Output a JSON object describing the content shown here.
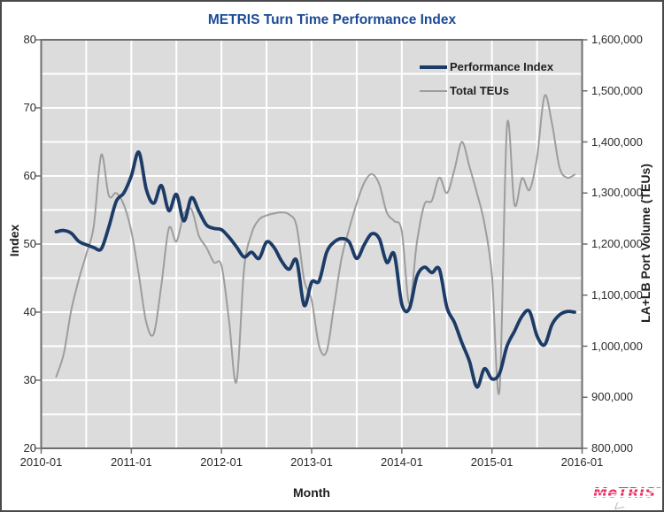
{
  "title": "METRIS Turn Time Performance Index",
  "colors": {
    "title_text": "#1b4a96",
    "performance_index_line": "#1c3c67",
    "total_teus_line": "#9d9d9d",
    "plot_background": "#dcdcdc",
    "gridline": "#ffffff",
    "axis_frame": "#6e6e6e",
    "tick_text": "#2b2b2b",
    "logo_red": "#e8265c"
  },
  "legend": [
    {
      "label": "Performance Index",
      "color": "#1c3c67",
      "thickness": 4
    },
    {
      "label": "Total TEUs",
      "color": "#9d9d9d",
      "thickness": 2
    }
  ],
  "axes": {
    "x": {
      "label": "Month",
      "tick_labels": [
        "2010-01",
        "2011-01",
        "2012-01",
        "2013-01",
        "2014-01",
        "2015-01",
        "2016-01"
      ],
      "tick_month_index": [
        0,
        12,
        24,
        36,
        48,
        60,
        72
      ],
      "minor_grid_step_months": 6
    },
    "y_left": {
      "label": "Index",
      "tick_values": [
        80,
        70,
        60,
        50,
        40,
        30,
        20
      ],
      "min": 20,
      "max": 80,
      "grid_step": 5
    },
    "y_right": {
      "label": "LA+LB Port Volume (TEUs)",
      "tick_labels": [
        "1,600,000",
        "1,500,000",
        "1,400,000",
        "1,300,000",
        "1,200,000",
        "1,100,000",
        "1,000,000",
        "900,000",
        "800,000"
      ],
      "tick_values": [
        1600000,
        1500000,
        1400000,
        1300000,
        1200000,
        1100000,
        1000000,
        900000,
        800000
      ],
      "min": 800000,
      "max": 1600000
    }
  },
  "chart_data": {
    "type": "line",
    "title": "METRIS Turn Time Performance Index",
    "xlabel": "Month",
    "ylabel_left": "Index",
    "ylabel_right": "LA+LB Port Volume (TEUs)",
    "ylim_left": [
      20,
      80
    ],
    "ylim_right": [
      800000,
      1600000
    ],
    "grid": true,
    "legend_position": "top-right-inside",
    "x": [
      "2010-01",
      "2010-02",
      "2010-03",
      "2010-04",
      "2010-05",
      "2010-06",
      "2010-07",
      "2010-08",
      "2010-09",
      "2010-10",
      "2010-11",
      "2010-12",
      "2011-01",
      "2011-02",
      "2011-03",
      "2011-04",
      "2011-05",
      "2011-06",
      "2011-07",
      "2011-08",
      "2011-09",
      "2011-10",
      "2011-11",
      "2011-12",
      "2012-01",
      "2012-02",
      "2012-03",
      "2012-04",
      "2012-05",
      "2012-06",
      "2012-07",
      "2012-08",
      "2012-09",
      "2012-10",
      "2012-11",
      "2012-12",
      "2013-01",
      "2013-02",
      "2013-03",
      "2013-04",
      "2013-05",
      "2013-06",
      "2013-07",
      "2013-08",
      "2013-09",
      "2013-10",
      "2013-11",
      "2013-12",
      "2014-01",
      "2014-02",
      "2014-03",
      "2014-04",
      "2014-05",
      "2014-06",
      "2014-07",
      "2014-08",
      "2014-09",
      "2014-10",
      "2014-11",
      "2014-12",
      "2015-01",
      "2015-02",
      "2015-03",
      "2015-04",
      "2015-05",
      "2015-06",
      "2015-07",
      "2015-08",
      "2015-09",
      "2015-10",
      "2015-11",
      "2015-12"
    ],
    "series": [
      {
        "name": "Performance Index",
        "axis": "left",
        "color": "#1c3c67",
        "width": 3.8,
        "values": [
          null,
          null,
          51.8,
          52.0,
          51.6,
          50.4,
          49.9,
          49.5,
          49.3,
          52.5,
          56.3,
          57.5,
          60.0,
          63.5,
          58.0,
          56.0,
          58.6,
          54.9,
          57.3,
          53.4,
          56.8,
          54.8,
          52.8,
          52.3,
          52.1,
          51.0,
          49.6,
          48.1,
          48.8,
          47.9,
          50.3,
          49.5,
          47.5,
          46.3,
          47.6,
          41.0,
          44.4,
          44.6,
          48.8,
          50.3,
          50.8,
          50.3,
          47.9,
          49.9,
          51.5,
          50.8,
          47.3,
          48.5,
          41.2,
          40.5,
          45.2,
          46.6,
          45.8,
          46.3,
          40.7,
          38.5,
          35.5,
          32.8,
          29.0,
          31.7,
          30.2,
          31.0,
          35.0,
          37.2,
          39.4,
          40.1,
          36.5,
          35.2,
          38.2,
          39.6,
          40.1,
          40.0
        ]
      },
      {
        "name": "Total TEUs",
        "axis": "right",
        "color": "#9d9d9d",
        "width": 2,
        "values": [
          null,
          null,
          940000,
          985000,
          1070000,
          1130000,
          1180000,
          1235000,
          1375000,
          1295000,
          1300000,
          1277000,
          1225000,
          1140000,
          1046000,
          1025000,
          1120000,
          1231000,
          1205000,
          1259000,
          1268000,
          1216000,
          1193000,
          1164000,
          1158000,
          1050000,
          930000,
          1150000,
          1220000,
          1248000,
          1256000,
          1260000,
          1262000,
          1258000,
          1235000,
          1130000,
          1090000,
          1000000,
          990000,
          1081000,
          1173000,
          1230000,
          1280000,
          1320000,
          1337000,
          1317000,
          1262000,
          1245000,
          1225000,
          1083000,
          1202000,
          1277000,
          1285000,
          1330000,
          1300000,
          1345000,
          1400000,
          1352000,
          1300000,
          1240000,
          1138000,
          913000,
          1430000,
          1277000,
          1329000,
          1306000,
          1370000,
          1490000,
          1435000,
          1350000,
          1330000,
          1336000
        ]
      }
    ]
  },
  "logo": {
    "text": "MeTRIS",
    "tm": "™"
  }
}
